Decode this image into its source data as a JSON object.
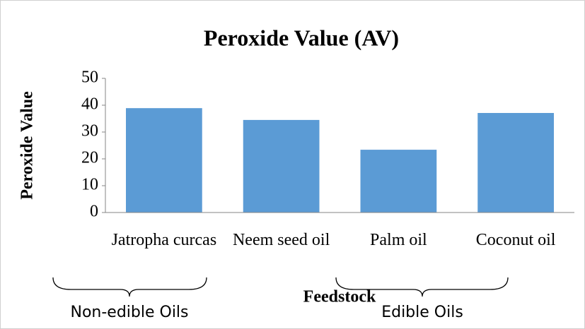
{
  "chart_data": {
    "type": "bar",
    "title": "Peroxide Value (AV)",
    "x_label": "Feedstock",
    "y_label": "Peroxide Value",
    "categories": [
      "Jatropha curcas",
      "Neem seed oil",
      "Palm oil",
      "Coconut oil"
    ],
    "values": [
      38.9,
      34.5,
      23.4,
      37.1
    ],
    "color": "#5b9bd5",
    "ylim": [
      0,
      50
    ],
    "yticks": [
      0,
      10,
      20,
      30,
      40,
      50
    ],
    "grid": false,
    "annotations": [
      "Non-edible Oils",
      "Edible Oils"
    ]
  }
}
